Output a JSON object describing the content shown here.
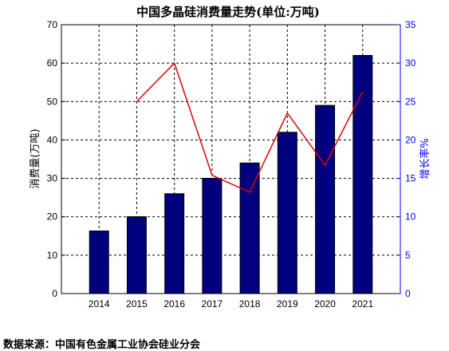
{
  "chart_data": {
    "type": "bar+line",
    "title": "中国多晶硅消费量走势(单位:万吨)",
    "categories": [
      "2014",
      "2015",
      "2016",
      "2017",
      "2018",
      "2019",
      "2020",
      "2021"
    ],
    "series": [
      {
        "axis": "left",
        "type": "bar",
        "values": [
          16.3,
          20,
          26,
          30,
          34,
          42,
          49,
          62
        ]
      },
      {
        "axis": "right",
        "type": "line",
        "values": [
          null,
          25,
          30,
          15.4,
          13.2,
          23.5,
          16.7,
          26.3
        ]
      }
    ],
    "ylabel_left": "消费量(万吨)",
    "ylabel_right": "增长率%",
    "ylim_left": [
      0,
      70
    ],
    "yticks_left": [
      0,
      10,
      20,
      30,
      40,
      50,
      60,
      70
    ],
    "ylim_right": [
      0,
      35
    ],
    "yticks_right": [
      0,
      5,
      10,
      15,
      20,
      25,
      30,
      35
    ],
    "grid": true,
    "colors": {
      "bar": "#00007f",
      "line": "#e00000",
      "right_axis": "#0000ff",
      "grid": "#000000"
    }
  },
  "source": "数据来源：中国有色金属工业协会硅业分会"
}
